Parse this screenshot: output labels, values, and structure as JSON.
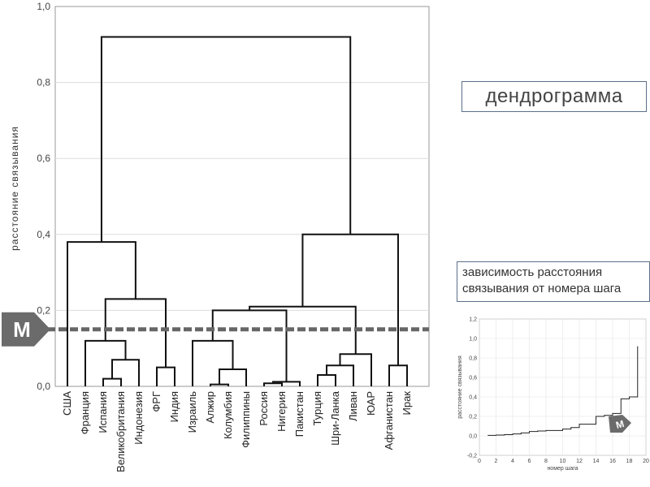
{
  "header": {
    "dendrogram_label": "дендрограмма",
    "dependency_label_line1": "зависимость расстояния",
    "dependency_label_line2": "связывания от номера шага",
    "marker_letter": "М"
  },
  "chart_data": [
    {
      "type": "dendrogram",
      "ylabel": "расстояние связывания",
      "ylim": [
        0,
        1.0
      ],
      "yticks": [
        "0,0",
        "0,2",
        "0,4",
        "0,6",
        "0,8",
        "1,0"
      ],
      "leaves": [
        "США",
        "Франция",
        "Испания",
        "Великобритания",
        "Индонезия",
        "ФРГ",
        "Индия",
        "Израиль",
        "Алжир",
        "Колумбия",
        "Филиппины",
        "Россия",
        "Нигерия",
        "Пакистан",
        "Турция",
        "Шри-Ланка",
        "Ливан",
        "ЮАР",
        "Афганистан",
        "Ирак"
      ],
      "cut_level": 0.15,
      "merges": [
        {
          "a": [
            8
          ],
          "b": [
            9
          ],
          "h": 0.005
        },
        {
          "a": [
            11
          ],
          "b": [
            12
          ],
          "h": 0.008
        },
        {
          "a": [
            11,
            12
          ],
          "b": [
            13
          ],
          "h": 0.012
        },
        {
          "a": [
            2
          ],
          "b": [
            3
          ],
          "h": 0.02
        },
        {
          "a": [
            14
          ],
          "b": [
            15
          ],
          "h": 0.03
        },
        {
          "a": [
            8,
            9
          ],
          "b": [
            10
          ],
          "h": 0.045
        },
        {
          "a": [
            5
          ],
          "b": [
            6
          ],
          "h": 0.05
        },
        {
          "a": [
            14,
            15
          ],
          "b": [
            16
          ],
          "h": 0.055
        },
        {
          "a": [
            18
          ],
          "b": [
            19
          ],
          "h": 0.055
        },
        {
          "a": [
            2,
            3
          ],
          "b": [
            4
          ],
          "h": 0.07
        },
        {
          "a": [
            14,
            15,
            16
          ],
          "b": [
            17
          ],
          "h": 0.085
        },
        {
          "a": [
            1
          ],
          "b": [
            2,
            3,
            4
          ],
          "h": 0.12
        },
        {
          "a": [
            7
          ],
          "b": [
            8,
            9,
            10
          ],
          "h": 0.12
        },
        {
          "a": [
            11,
            12,
            13
          ],
          "b": [
            7,
            8,
            9,
            10
          ],
          "h": 0.2
        },
        {
          "a": [
            7,
            8,
            9,
            10,
            11,
            12,
            13
          ],
          "b": [
            14,
            15,
            16,
            17
          ],
          "h": 0.21
        },
        {
          "a": [
            1,
            2,
            3,
            4
          ],
          "b": [
            5,
            6
          ],
          "h": 0.23
        },
        {
          "a": [
            0
          ],
          "b": [
            1,
            2,
            3,
            4,
            5,
            6
          ],
          "h": 0.38
        },
        {
          "a": [
            7,
            8,
            9,
            10,
            11,
            12,
            13,
            14,
            15,
            16,
            17
          ],
          "b": [
            18,
            19
          ],
          "h": 0.4
        },
        {
          "a": [
            0,
            1,
            2,
            3,
            4,
            5,
            6
          ],
          "b": [
            7,
            8,
            9,
            10,
            11,
            12,
            13,
            14,
            15,
            16,
            17,
            18,
            19
          ],
          "h": 0.92
        }
      ]
    },
    {
      "type": "line",
      "xlabel": "номер шага",
      "ylabel": "расстояние связывания",
      "xlim": [
        0,
        20
      ],
      "ylim": [
        -0.2,
        1.2
      ],
      "xticks": [
        "0",
        "2",
        "4",
        "6",
        "8",
        "10",
        "12",
        "14",
        "16",
        "18",
        "20"
      ],
      "yticks": [
        "-0,2",
        "0,0",
        "0,2",
        "0,4",
        "0,6",
        "0,8",
        "1,0",
        "1,2"
      ],
      "x": [
        1,
        2,
        3,
        4,
        5,
        6,
        7,
        8,
        9,
        10,
        11,
        12,
        13,
        14,
        15,
        16,
        17,
        18,
        19
      ],
      "y": [
        0.005,
        0.008,
        0.012,
        0.02,
        0.03,
        0.045,
        0.05,
        0.055,
        0.055,
        0.07,
        0.085,
        0.12,
        0.12,
        0.2,
        0.21,
        0.23,
        0.38,
        0.4,
        0.92
      ]
    }
  ]
}
